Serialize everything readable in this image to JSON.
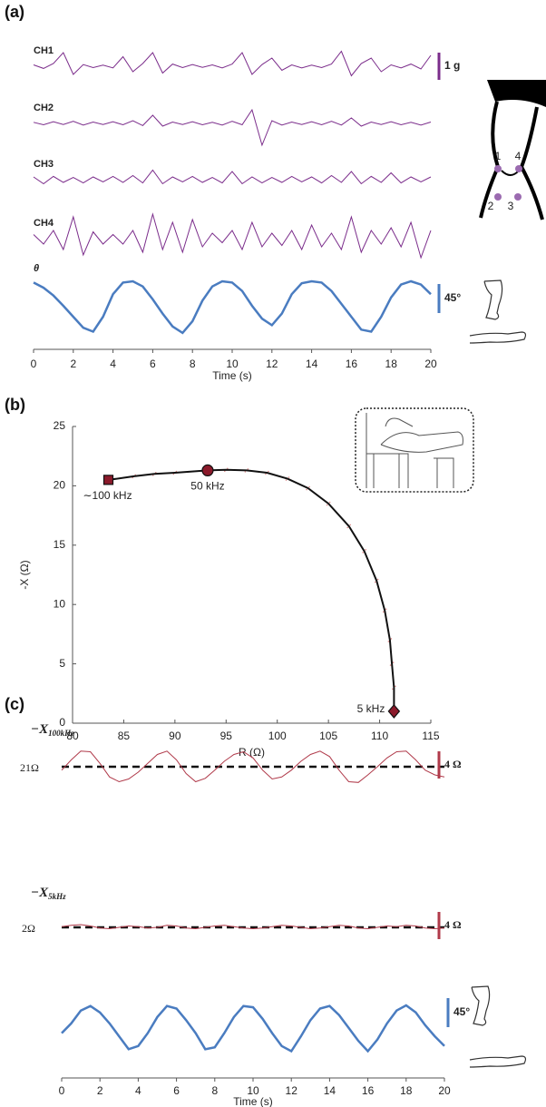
{
  "chart_data": [
    {
      "type": "line",
      "panel": "(a)",
      "x": [
        0,
        0.5,
        1,
        1.5,
        2,
        2.5,
        3,
        3.5,
        4,
        4.5,
        5,
        5.5,
        6,
        6.5,
        7,
        7.5,
        8,
        8.5,
        9,
        9.5,
        10,
        10.5,
        11,
        11.5,
        12,
        12.5,
        13,
        13.5,
        14,
        14.5,
        15,
        15.5,
        16,
        16.5,
        17,
        17.5,
        18,
        18.5,
        19,
        19.5,
        20
      ],
      "xlim": [
        0,
        20
      ],
      "xticks": [
        0,
        2,
        4,
        6,
        8,
        10,
        12,
        14,
        16,
        18,
        20
      ],
      "xlabel": "Time (s)",
      "series": [
        {
          "name": "CH1",
          "color": "#7b2d8b",
          "values": [
            0.05,
            -0.08,
            0.1,
            0.5,
            -0.3,
            0.06,
            -0.05,
            0.04,
            -0.06,
            0.35,
            -0.2,
            0.1,
            0.5,
            -0.25,
            0.08,
            -0.05,
            0.06,
            -0.04,
            0.05,
            -0.06,
            0.08,
            0.5,
            -0.3,
            0.06,
            0.3,
            -0.15,
            0.05,
            -0.06,
            0.04,
            -0.05,
            0.08,
            0.55,
            -0.35,
            0.1,
            0.3,
            -0.2,
            0.05,
            -0.06,
            0.08,
            -0.1,
            0.4
          ]
        },
        {
          "name": "CH2",
          "color": "#7b2d8b",
          "values": [
            0.04,
            -0.05,
            0.06,
            -0.04,
            0.08,
            -0.06,
            0.05,
            -0.04,
            0.06,
            -0.05,
            0.1,
            -0.08,
            0.3,
            -0.1,
            0.05,
            -0.04,
            0.06,
            -0.05,
            0.04,
            -0.06,
            0.08,
            -0.05,
            0.5,
            -0.8,
            0.1,
            -0.06,
            0.05,
            -0.04,
            0.06,
            -0.05,
            0.08,
            -0.06,
            0.2,
            -0.1,
            0.05,
            -0.04,
            0.06,
            -0.05,
            0.04,
            -0.06,
            0.05
          ]
        },
        {
          "name": "CH3",
          "color": "#7b2d8b",
          "values": [
            0.1,
            -0.15,
            0.12,
            -0.1,
            0.08,
            -0.12,
            0.1,
            -0.08,
            0.12,
            -0.1,
            0.15,
            -0.12,
            0.35,
            -0.15,
            0.1,
            -0.08,
            0.12,
            -0.1,
            0.08,
            -0.12,
            0.3,
            -0.15,
            0.1,
            -0.12,
            0.08,
            -0.1,
            0.12,
            -0.08,
            0.1,
            -0.12,
            0.15,
            -0.1,
            0.3,
            -0.15,
            0.12,
            -0.1,
            0.25,
            -0.12,
            0.1,
            -0.08,
            0.1
          ]
        },
        {
          "name": "CH4",
          "color": "#7b2d8b",
          "values": [
            0.15,
            -0.2,
            0.3,
            -0.4,
            0.8,
            -0.6,
            0.25,
            -0.2,
            0.15,
            -0.2,
            0.3,
            -0.5,
            0.9,
            -0.4,
            0.6,
            -0.5,
            0.7,
            -0.3,
            0.2,
            -0.15,
            0.3,
            -0.4,
            0.6,
            -0.3,
            0.2,
            -0.25,
            0.3,
            -0.4,
            0.5,
            -0.3,
            0.2,
            -0.4,
            0.8,
            -0.5,
            0.3,
            -0.2,
            0.4,
            -0.3,
            0.6,
            -0.7,
            0.3
          ]
        },
        {
          "name": "θ",
          "color": "#4a7cc0",
          "values": [
            88,
            80,
            68,
            52,
            35,
            18,
            12,
            35,
            70,
            88,
            90,
            82,
            62,
            40,
            20,
            10,
            28,
            60,
            82,
            90,
            88,
            75,
            52,
            32,
            22,
            40,
            70,
            87,
            90,
            88,
            75,
            55,
            35,
            15,
            12,
            35,
            65,
            85,
            90,
            85,
            70
          ]
        }
      ],
      "scale_bars": [
        {
          "value": 1,
          "label": "1 g",
          "color": "#7b2d8b"
        },
        {
          "value": 45,
          "label": "45°",
          "color": "#4a7cc0"
        }
      ],
      "electrode_labels": [
        "1",
        "2",
        "3",
        "4"
      ]
    },
    {
      "type": "scatter",
      "panel": "(b)",
      "x": [
        83.5,
        86,
        88,
        90,
        93.2,
        95,
        97,
        99,
        101,
        103,
        105,
        107,
        108.5,
        109.7,
        110.5,
        111,
        111.2,
        111.4,
        111.4
      ],
      "values": [
        20.5,
        20.8,
        21,
        21.1,
        21.3,
        21.35,
        21.3,
        21.1,
        20.6,
        19.8,
        18.5,
        16.6,
        14.5,
        12,
        9.5,
        7,
        5,
        3,
        1
      ],
      "xlim": [
        80,
        115
      ],
      "xticks": [
        80,
        85,
        90,
        95,
        100,
        105,
        110,
        115
      ],
      "ylim": [
        0,
        25
      ],
      "yticks": [
        0,
        5,
        10,
        15,
        20,
        25
      ],
      "xlabel": "R (Ω)",
      "ylabel": "-X (Ω)",
      "color": "#111111",
      "markers": [
        {
          "label": "∼100 kHz",
          "x": 83.5,
          "y": 20.5,
          "shape": "square"
        },
        {
          "label": "50 kHz",
          "x": 93.2,
          "y": 21.3,
          "shape": "circle"
        },
        {
          "label": "5 kHz",
          "x": 111.4,
          "y": 1,
          "shape": "diamond"
        }
      ]
    },
    {
      "type": "line",
      "panel": "(c)",
      "x": [
        0,
        0.5,
        1,
        1.5,
        2,
        2.5,
        3,
        3.5,
        4,
        4.5,
        5,
        5.5,
        6,
        6.5,
        7,
        7.5,
        8,
        8.5,
        9,
        9.5,
        10,
        10.5,
        11,
        11.5,
        12,
        12.5,
        13,
        13.5,
        14,
        14.5,
        15,
        15.5,
        16,
        16.5,
        17,
        17.5,
        18,
        18.5,
        19,
        19.5,
        20
      ],
      "xlim": [
        0,
        20
      ],
      "xticks": [
        0,
        2,
        4,
        6,
        8,
        10,
        12,
        14,
        16,
        18,
        20
      ],
      "xlabel": "Time (s)",
      "series": [
        {
          "name": "−X",
          "subscript": "100kHz",
          "color": "#b03a4a",
          "reference": 21,
          "reference_label": "21Ω",
          "values": [
            20.5,
            22,
            23.3,
            23.2,
            21.5,
            19.5,
            18.8,
            19.2,
            20.2,
            21.5,
            22.8,
            23.3,
            22,
            20,
            18.8,
            19.3,
            20.5,
            21.8,
            22.8,
            23.2,
            22.3,
            20.5,
            19.2,
            19.5,
            20.5,
            21.8,
            22.8,
            23.3,
            22.5,
            20.5,
            18.8,
            18.7,
            19.8,
            21,
            22.3,
            23.2,
            23.3,
            22,
            20.5,
            19.8,
            19.5
          ]
        },
        {
          "name": "−X",
          "subscript": "5kHz",
          "color": "#b03a4a",
          "reference": 2,
          "reference_label": "2Ω",
          "values": [
            2.1,
            2.3,
            2.4,
            2.2,
            1.9,
            1.8,
            2.0,
            2.2,
            2.1,
            1.9,
            2.0,
            2.3,
            2.2,
            1.9,
            1.8,
            2.0,
            2.2,
            2.3,
            2.1,
            1.9,
            1.8,
            1.9,
            2.1,
            2.3,
            2.2,
            2.0,
            1.8,
            1.9,
            2.1,
            2.3,
            2.2,
            1.9,
            1.8,
            2.0,
            2.2,
            2.1,
            2.3,
            2.2,
            1.9,
            1.8,
            1.9
          ]
        },
        {
          "color": "#4a7cc0",
          "values": [
            40,
            55,
            75,
            82,
            72,
            55,
            35,
            15,
            20,
            40,
            65,
            82,
            78,
            60,
            40,
            15,
            18,
            40,
            65,
            82,
            80,
            62,
            40,
            20,
            12,
            35,
            60,
            78,
            82,
            68,
            48,
            28,
            12,
            30,
            55,
            75,
            83,
            72,
            52,
            35,
            20
          ]
        }
      ],
      "scale_bars": [
        {
          "value": 4,
          "label": "4 Ω",
          "color": "#b03a4a"
        },
        {
          "value": 4,
          "label": "4 Ω",
          "color": "#b03a4a"
        },
        {
          "value": 45,
          "label": "45°",
          "color": "#4a7cc0"
        }
      ]
    }
  ]
}
